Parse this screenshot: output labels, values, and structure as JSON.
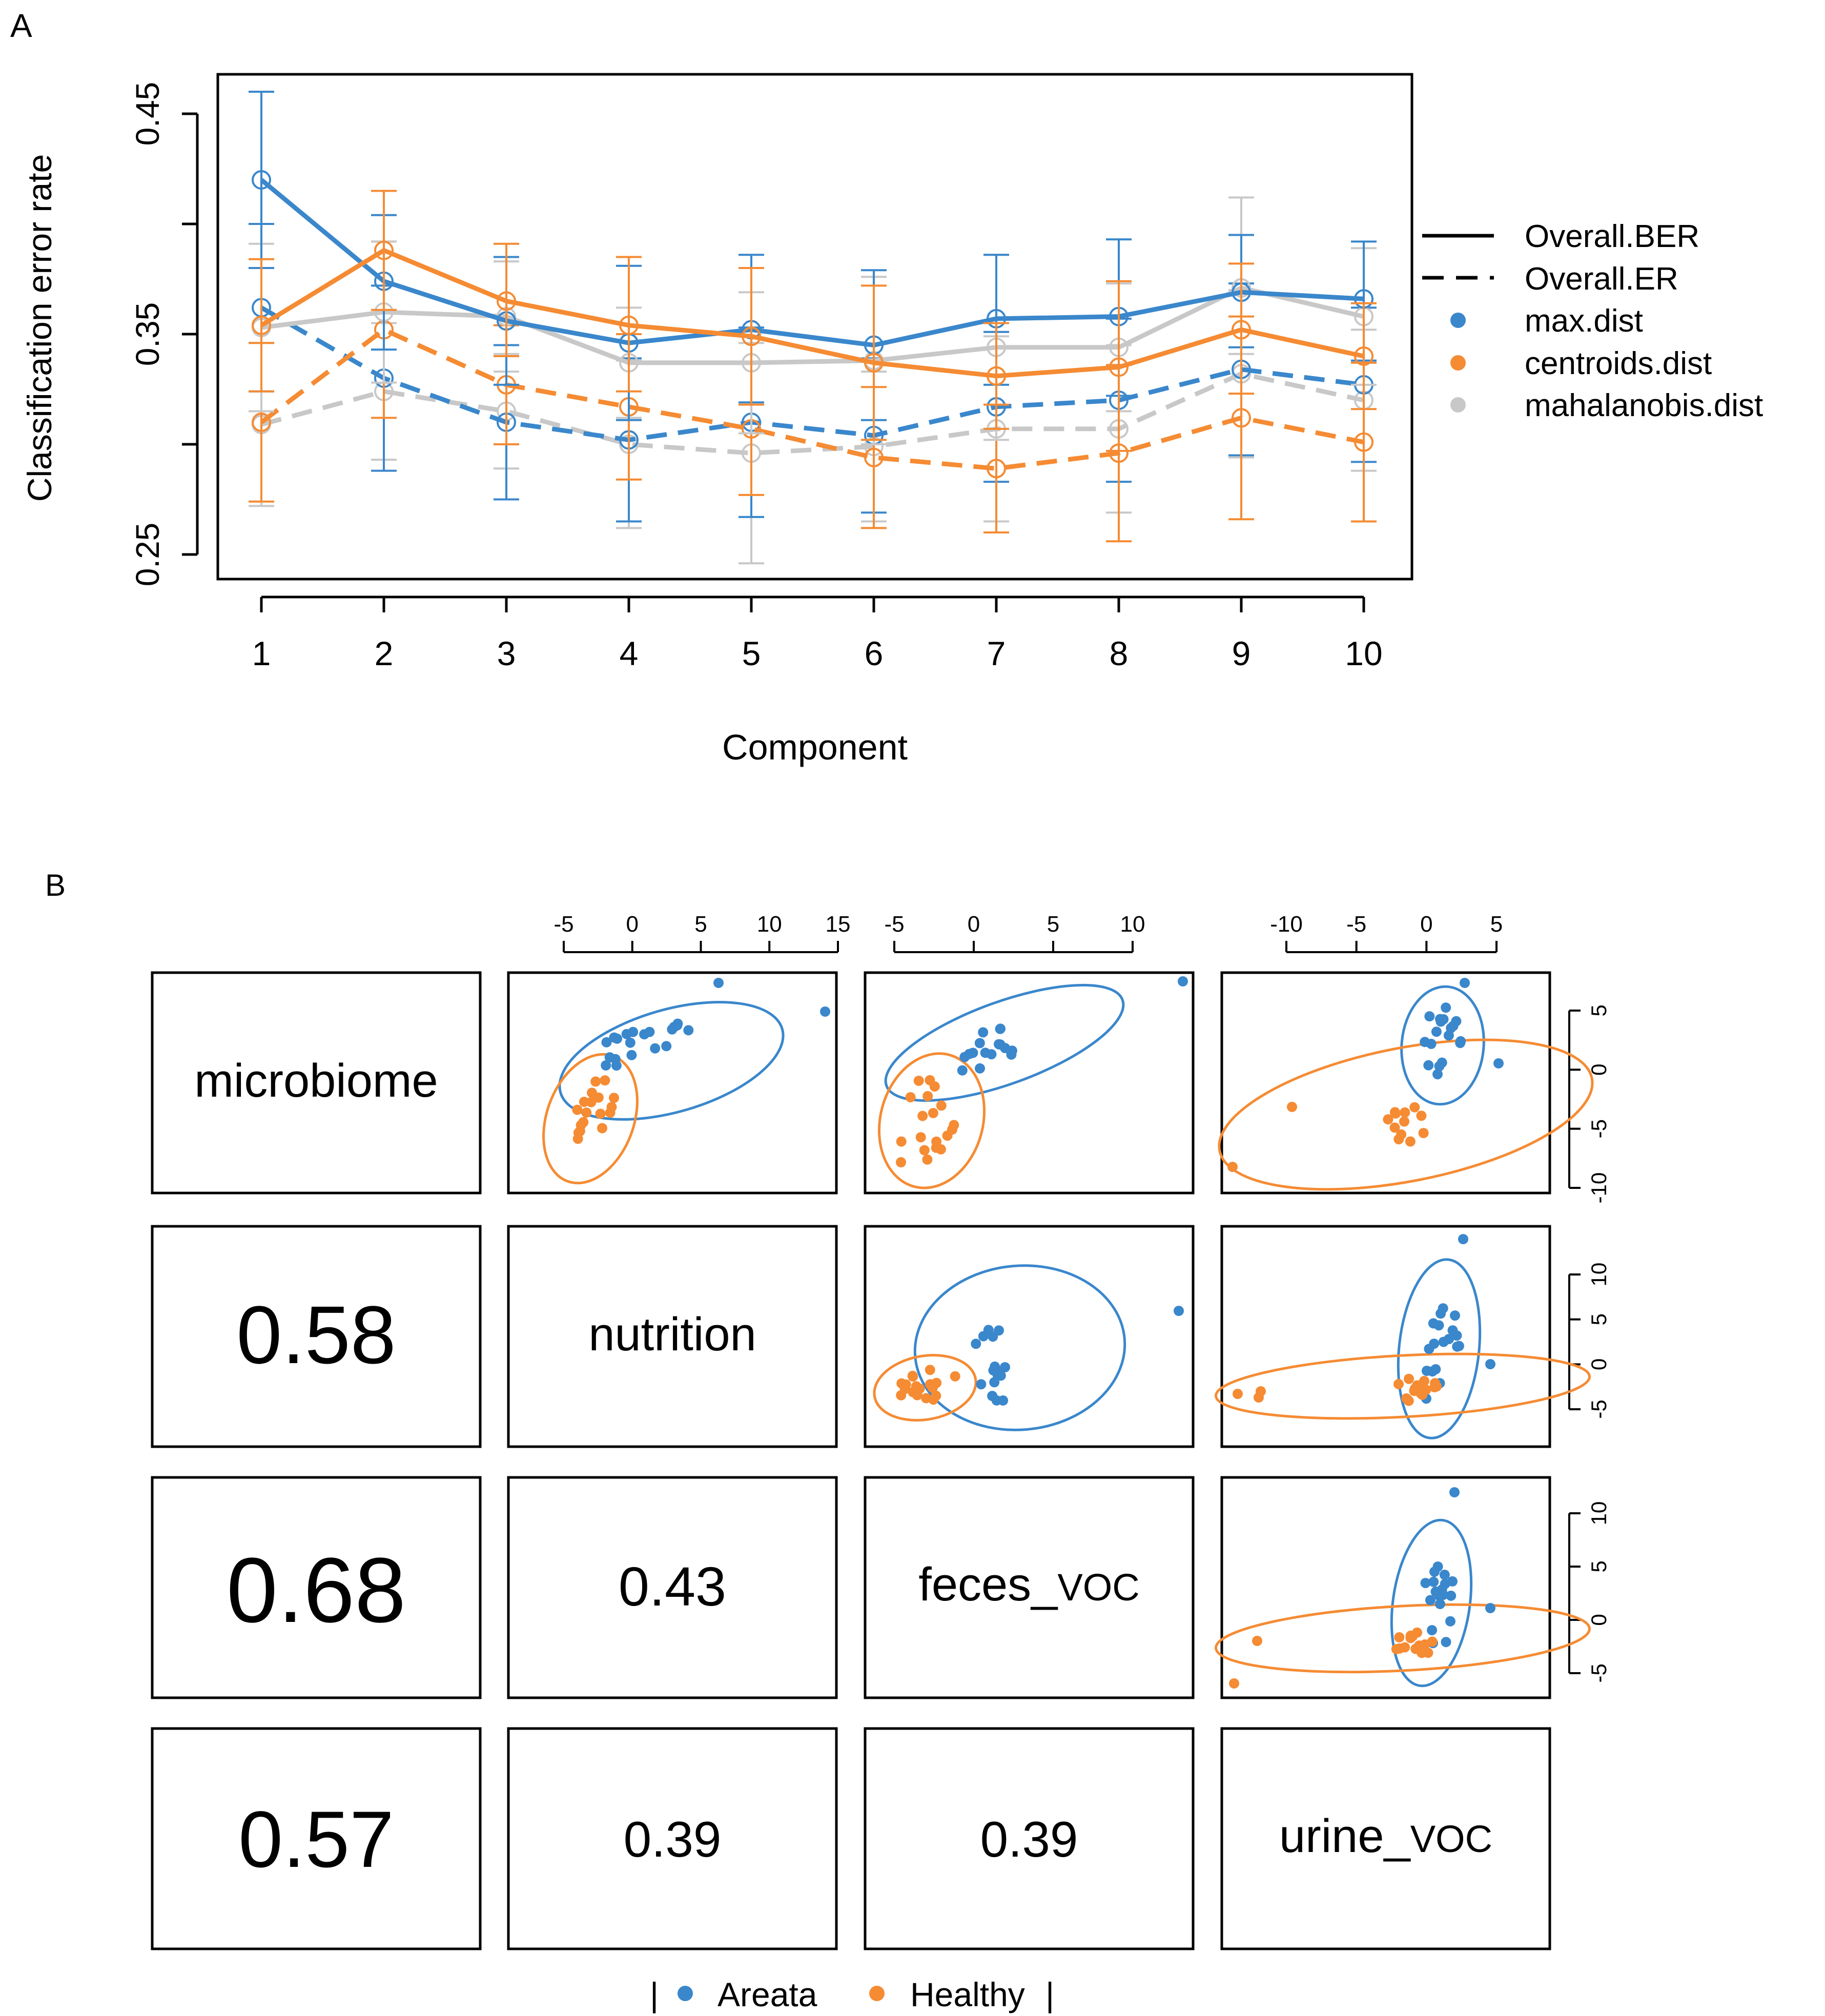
{
  "colors": {
    "max_dist": "#3a87cc",
    "centroids_dist": "#f58b33",
    "mahalanobis_dist": "#c8c8c8",
    "areata": "#3a87cc",
    "healthy": "#f58b33"
  },
  "chart_data": [
    {
      "panel": "A",
      "type": "line",
      "ylabel": "Classification error rate",
      "xlabel": "Component",
      "x": [
        1,
        2,
        3,
        4,
        5,
        6,
        7,
        8,
        9,
        10
      ],
      "x_tick_labels": [
        "1",
        "2",
        "3",
        "4",
        "5",
        "6",
        "7",
        "8",
        "9",
        "10"
      ],
      "y_tick_labels": [
        "0.25",
        "0.35",
        "0.45"
      ],
      "y_ticks": [
        0.25,
        0.3,
        0.35,
        0.4,
        0.45
      ],
      "ylim": [
        0.24,
        0.47
      ],
      "legend_position": "right",
      "legend": [
        "Overall.BER",
        "Overall.ER",
        "max.dist",
        "centroids.dist",
        "mahalanobis.dist"
      ],
      "series": [
        {
          "name": "max.dist",
          "metric": "Overall.BER",
          "color_key": "max_dist",
          "values": [
            0.42,
            0.374,
            0.356,
            0.346,
            0.352,
            0.345,
            0.357,
            0.358,
            0.369,
            0.366
          ],
          "lower": [
            0.38,
            0.343,
            0.327,
            0.311,
            0.319,
            0.311,
            0.327,
            0.322,
            0.344,
            0.338
          ],
          "upper": [
            0.46,
            0.404,
            0.385,
            0.381,
            0.386,
            0.379,
            0.386,
            0.393,
            0.395,
            0.392
          ]
        },
        {
          "name": "centroids.dist",
          "metric": "Overall.BER",
          "color_key": "centroids_dist",
          "values": [
            0.354,
            0.388,
            0.365,
            0.354,
            0.349,
            0.337,
            0.331,
            0.335,
            0.352,
            0.34
          ],
          "lower": [
            0.324,
            0.361,
            0.34,
            0.324,
            0.318,
            0.302,
            0.307,
            0.297,
            0.323,
            0.316
          ],
          "upper": [
            0.384,
            0.415,
            0.391,
            0.385,
            0.38,
            0.372,
            0.355,
            0.374,
            0.382,
            0.364
          ]
        },
        {
          "name": "mahalanobis.dist",
          "metric": "Overall.BER",
          "color_key": "mahalanobis_dist",
          "values": [
            0.353,
            0.36,
            0.358,
            0.337,
            0.337,
            0.338,
            0.344,
            0.344,
            0.371,
            0.358
          ],
          "lower": [
            0.315,
            0.328,
            0.333,
            0.312,
            0.305,
            0.3,
            0.302,
            0.315,
            0.341,
            0.327
          ],
          "upper": [
            0.391,
            0.392,
            0.383,
            0.362,
            0.369,
            0.376,
            0.386,
            0.373,
            0.412,
            0.389
          ]
        },
        {
          "name": "max.dist",
          "metric": "Overall.ER",
          "color_key": "max_dist",
          "values": [
            0.362,
            0.33,
            0.31,
            0.302,
            0.31,
            0.304,
            0.317,
            0.32,
            0.334,
            0.327
          ],
          "lower": [
            0.324,
            0.288,
            0.275,
            0.265,
            0.267,
            0.269,
            0.283,
            0.283,
            0.295,
            0.292
          ],
          "upper": [
            0.4,
            0.372,
            0.345,
            0.339,
            0.353,
            0.339,
            0.351,
            0.357,
            0.373,
            0.362
          ]
        },
        {
          "name": "centroids.dist",
          "metric": "Overall.ER",
          "color_key": "centroids_dist",
          "values": [
            0.31,
            0.352,
            0.327,
            0.317,
            0.307,
            0.294,
            0.289,
            0.296,
            0.312,
            0.301
          ],
          "lower": [
            0.274,
            0.312,
            0.3,
            0.284,
            0.277,
            0.262,
            0.26,
            0.256,
            0.266,
            0.265
          ],
          "upper": [
            0.346,
            0.392,
            0.354,
            0.35,
            0.337,
            0.326,
            0.318,
            0.336,
            0.358,
            0.337
          ]
        },
        {
          "name": "mahalanobis.dist",
          "metric": "Overall.ER",
          "color_key": "mahalanobis_dist",
          "values": [
            0.309,
            0.324,
            0.315,
            0.3,
            0.296,
            0.299,
            0.307,
            0.307,
            0.332,
            0.32
          ],
          "lower": [
            0.272,
            0.293,
            0.289,
            0.262,
            0.246,
            0.265,
            0.265,
            0.269,
            0.294,
            0.288
          ],
          "upper": [
            0.346,
            0.355,
            0.341,
            0.338,
            0.346,
            0.333,
            0.349,
            0.345,
            0.37,
            0.352
          ]
        }
      ]
    },
    {
      "panel": "B",
      "type": "scatter",
      "blocks": [
        "microbiome",
        "nutrition",
        "feces_voc",
        "urine_voc"
      ],
      "correlations": [
        {
          "row": "nutrition",
          "col": "microbiome",
          "value": "0.58"
        },
        {
          "row": "feces_voc",
          "col": "microbiome",
          "value": "0.68"
        },
        {
          "row": "feces_voc",
          "col": "nutrition",
          "value": "0.43"
        },
        {
          "row": "urine_voc",
          "col": "microbiome",
          "value": "0.57"
        },
        {
          "row": "urine_voc",
          "col": "nutrition",
          "value": "0.39"
        },
        {
          "row": "urine_voc",
          "col": "feces_voc",
          "value": "0.39"
        }
      ],
      "top_axes": [
        {
          "column": "nutrition",
          "ticks": [
            "-5",
            "0",
            "5",
            "10",
            "15"
          ],
          "values": [
            -5,
            0,
            5,
            10,
            15
          ]
        },
        {
          "column": "feces_voc",
          "ticks": [
            "-5",
            "0",
            "5",
            "10"
          ],
          "values": [
            -5,
            0,
            5,
            10
          ]
        },
        {
          "column": "urine_voc",
          "ticks": [
            "-10",
            "-5",
            "0",
            "5"
          ],
          "values": [
            -10,
            -5,
            0,
            5
          ]
        }
      ],
      "right_axes": [
        {
          "row": "microbiome",
          "ticks": [
            "5",
            "0",
            "-5",
            "-10"
          ],
          "values": [
            5,
            0,
            -5,
            -10
          ]
        },
        {
          "row": "nutrition",
          "ticks": [
            "10",
            "5",
            "0",
            "-5"
          ],
          "values": [
            10,
            5,
            0,
            -5
          ]
        },
        {
          "row": "feces_voc",
          "ticks": [
            "10",
            "5",
            "0",
            "-5"
          ],
          "values": [
            10,
            5,
            0,
            -5
          ]
        }
      ],
      "legend": [
        "Areata",
        "Healthy"
      ]
    }
  ],
  "panel_a": {
    "label": "A"
  },
  "panel_b": {
    "label": "B",
    "block_names": {
      "microbiome": "microbiome",
      "nutrition": "nutrition",
      "feces_main": "feces_",
      "feces_sub": "VOC",
      "urine_main": "urine_",
      "urine_sub": "VOC"
    },
    "legend_left_bar": "|",
    "legend_right_bar": "|"
  }
}
